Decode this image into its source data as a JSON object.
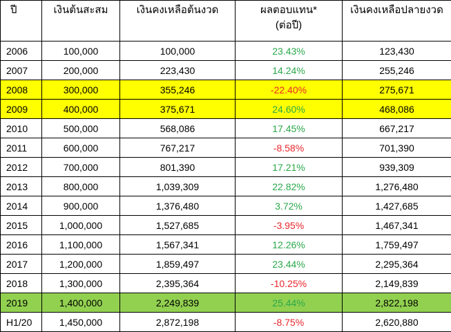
{
  "table": {
    "header": [
      "ปี",
      "เงินต้นสะสม",
      "เงินคงเหลือต้นงวด",
      [
        "ผลตอบแทน*",
        "(ต่อปี)"
      ],
      "เงินคงเหลือปลายงวด"
    ],
    "positive_color": "#2aa84a",
    "negative_color": "#e8262a",
    "rows": [
      {
        "cells": [
          "2006",
          "100,000",
          "100,000",
          "23.43%",
          "123,430"
        ]
      },
      {
        "cells": [
          "2007",
          "200,000",
          "223,430",
          "14.24%",
          "255,246"
        ]
      },
      {
        "cells": [
          "2008",
          "300,000",
          "355,246",
          "-22.40%",
          "275,671"
        ],
        "fill": "#ffff00"
      },
      {
        "cells": [
          "2009",
          "400,000",
          "375,671",
          "24.60%",
          "468,086"
        ],
        "fill": "#ffff00"
      },
      {
        "cells": [
          "2010",
          "500,000",
          "568,086",
          "17.45%",
          "667,217"
        ]
      },
      {
        "cells": [
          "2011",
          "600,000",
          "767,217",
          "-8.58%",
          "701,390"
        ]
      },
      {
        "cells": [
          "2012",
          "700,000",
          "801,390",
          "17.21%",
          "939,309"
        ]
      },
      {
        "cells": [
          "2013",
          "800,000",
          "1,039,309",
          "22.82%",
          "1,276,480"
        ]
      },
      {
        "cells": [
          "2014",
          "900,000",
          "1,376,480",
          "3.72%",
          "1,427,685"
        ]
      },
      {
        "cells": [
          "2015",
          "1,000,000",
          "1,527,685",
          "-3.95%",
          "1,467,341"
        ]
      },
      {
        "cells": [
          "2016",
          "1,100,000",
          "1,567,341",
          "12.26%",
          "1,759,497"
        ]
      },
      {
        "cells": [
          "2017",
          "1,200,000",
          "1,859,497",
          "23.44%",
          "2,295,364"
        ]
      },
      {
        "cells": [
          "2018",
          "1,300,000",
          "2,395,364",
          "-10.25%",
          "2,149,839"
        ]
      },
      {
        "cells": [
          "2019",
          "1,400,000",
          "2,249,839",
          "25.44%",
          "2,822,198"
        ],
        "fill": "#92d050"
      },
      {
        "cells": [
          "H1/20",
          "1,450,000",
          "2,872,198",
          "-8.75%",
          "2,620,880"
        ]
      }
    ]
  }
}
